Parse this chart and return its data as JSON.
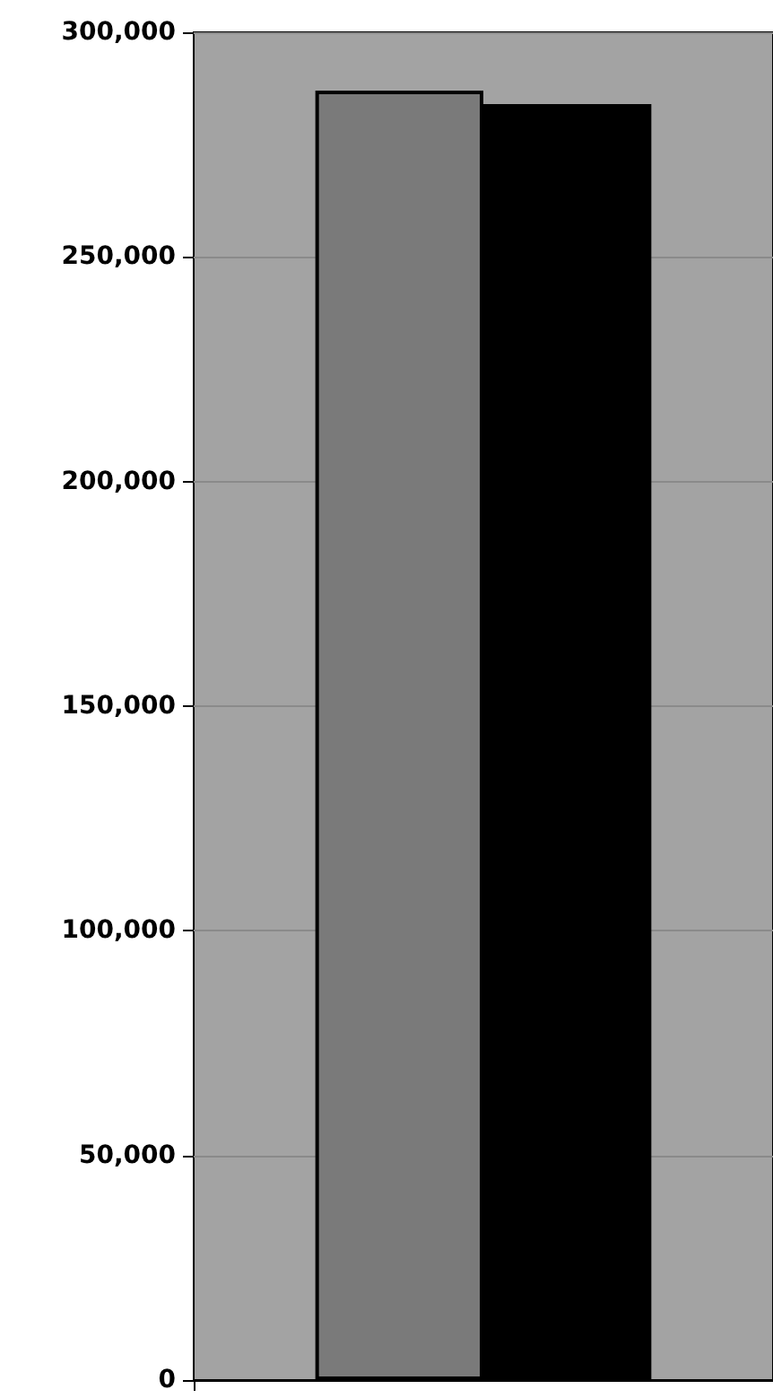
{
  "chart_data": {
    "type": "bar",
    "categories": [
      null
    ],
    "series": [
      {
        "color": "#7a7a7a",
        "values": [
          287000
        ]
      },
      {
        "color": "#000000",
        "values": [
          284000
        ]
      }
    ],
    "ylim": [
      0,
      300000
    ],
    "yticks": [
      {
        "value": 0,
        "label": "0"
      },
      {
        "value": 50000,
        "label": "50,000"
      },
      {
        "value": 100000,
        "label": "100,000"
      },
      {
        "value": 150000,
        "label": "150,000"
      },
      {
        "value": 200000,
        "label": "200,000"
      },
      {
        "value": 250000,
        "label": "250,000"
      },
      {
        "value": 300000,
        "label": "300,000"
      }
    ],
    "grid": "y"
  }
}
